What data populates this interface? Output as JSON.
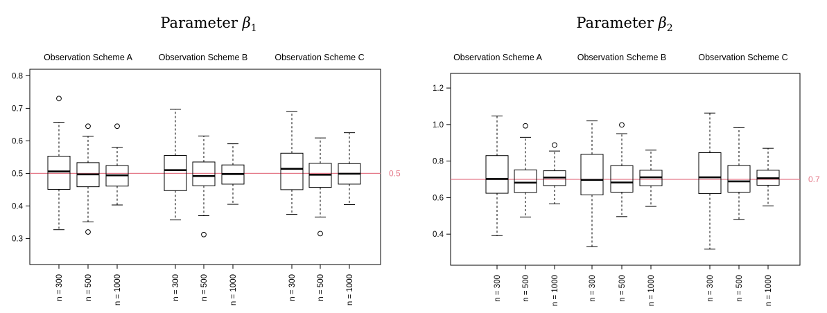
{
  "colors": {
    "reference_line": "#e57a8a",
    "box": "#000000",
    "background": "#ffffff"
  },
  "chart_data": [
    {
      "type": "boxplot",
      "title": "Parameter",
      "title_symbol": "β",
      "title_subscript": "1",
      "ylim": [
        0.22,
        0.82
      ],
      "yticks": [
        "0.3",
        "0.4",
        "0.5",
        "0.6",
        "0.7",
        "0.8"
      ],
      "ytick_values": [
        0.3,
        0.4,
        0.5,
        0.6,
        0.7,
        0.8
      ],
      "reference_value": 0.5,
      "reference_label": "0.5",
      "groups": [
        {
          "name": "Observation Scheme A",
          "boxes": [
            {
              "label": "n = 300",
              "whisker_low": 0.327,
              "q1": 0.451,
              "median": 0.506,
              "q3": 0.553,
              "whisker_high": 0.657,
              "outliers": [
                0.73
              ]
            },
            {
              "label": "n = 500",
              "whisker_low": 0.351,
              "q1": 0.459,
              "median": 0.497,
              "q3": 0.533,
              "whisker_high": 0.614,
              "outliers": [
                0.645,
                0.32
              ]
            },
            {
              "label": "n = 1000",
              "whisker_low": 0.403,
              "q1": 0.461,
              "median": 0.494,
              "q3": 0.524,
              "whisker_high": 0.58,
              "outliers": [
                0.645
              ]
            }
          ]
        },
        {
          "name": "Observation Scheme B",
          "boxes": [
            {
              "label": "n = 300",
              "whisker_low": 0.357,
              "q1": 0.447,
              "median": 0.51,
              "q3": 0.555,
              "whisker_high": 0.697,
              "outliers": []
            },
            {
              "label": "n = 500",
              "whisker_low": 0.37,
              "q1": 0.462,
              "median": 0.492,
              "q3": 0.535,
              "whisker_high": 0.615,
              "outliers": [
                0.312
              ]
            },
            {
              "label": "n = 1000",
              "whisker_low": 0.405,
              "q1": 0.467,
              "median": 0.498,
              "q3": 0.526,
              "whisker_high": 0.591,
              "outliers": []
            }
          ]
        },
        {
          "name": "Observation Scheme C",
          "boxes": [
            {
              "label": "n = 300",
              "whisker_low": 0.374,
              "q1": 0.45,
              "median": 0.514,
              "q3": 0.562,
              "whisker_high": 0.69,
              "outliers": []
            },
            {
              "label": "n = 500",
              "whisker_low": 0.366,
              "q1": 0.457,
              "median": 0.496,
              "q3": 0.531,
              "whisker_high": 0.609,
              "outliers": [
                0.315
              ]
            },
            {
              "label": "n = 1000",
              "whisker_low": 0.404,
              "q1": 0.467,
              "median": 0.499,
              "q3": 0.53,
              "whisker_high": 0.625,
              "outliers": []
            }
          ]
        }
      ]
    },
    {
      "type": "boxplot",
      "title": "Parameter",
      "title_symbol": "β",
      "title_subscript": "2",
      "ylim": [
        0.23,
        1.28
      ],
      "yticks": [
        "0.4",
        "0.6",
        "0.8",
        "1.0",
        "1.2"
      ],
      "ytick_values": [
        0.4,
        0.6,
        0.8,
        1.0,
        1.2
      ],
      "reference_value": 0.7,
      "reference_label": "0.7",
      "groups": [
        {
          "name": "Observation Scheme A",
          "boxes": [
            {
              "label": "n = 300",
              "whisker_low": 0.392,
              "q1": 0.624,
              "median": 0.702,
              "q3": 0.83,
              "whisker_high": 1.047,
              "outliers": []
            },
            {
              "label": "n = 500",
              "whisker_low": 0.494,
              "q1": 0.628,
              "median": 0.682,
              "q3": 0.752,
              "whisker_high": 0.93,
              "outliers": [
                0.993
              ]
            },
            {
              "label": "n = 1000",
              "whisker_low": 0.566,
              "q1": 0.666,
              "median": 0.71,
              "q3": 0.747,
              "whisker_high": 0.855,
              "outliers": [
                0.888
              ]
            }
          ]
        },
        {
          "name": "Observation Scheme B",
          "boxes": [
            {
              "label": "n = 300",
              "whisker_low": 0.332,
              "q1": 0.615,
              "median": 0.697,
              "q3": 0.837,
              "whisker_high": 1.02,
              "outliers": []
            },
            {
              "label": "n = 500",
              "whisker_low": 0.496,
              "q1": 0.63,
              "median": 0.683,
              "q3": 0.775,
              "whisker_high": 0.95,
              "outliers": [
                0.998
              ]
            },
            {
              "label": "n = 1000",
              "whisker_low": 0.552,
              "q1": 0.665,
              "median": 0.711,
              "q3": 0.75,
              "whisker_high": 0.86,
              "outliers": []
            }
          ]
        },
        {
          "name": "Observation Scheme C",
          "boxes": [
            {
              "label": "n = 300",
              "whisker_low": 0.318,
              "q1": 0.622,
              "median": 0.711,
              "q3": 0.846,
              "whisker_high": 1.063,
              "outliers": []
            },
            {
              "label": "n = 500",
              "whisker_low": 0.481,
              "q1": 0.63,
              "median": 0.689,
              "q3": 0.776,
              "whisker_high": 0.983,
              "outliers": []
            },
            {
              "label": "n = 1000",
              "whisker_low": 0.555,
              "q1": 0.668,
              "median": 0.706,
              "q3": 0.75,
              "whisker_high": 0.87,
              "outliers": []
            }
          ]
        }
      ]
    }
  ]
}
